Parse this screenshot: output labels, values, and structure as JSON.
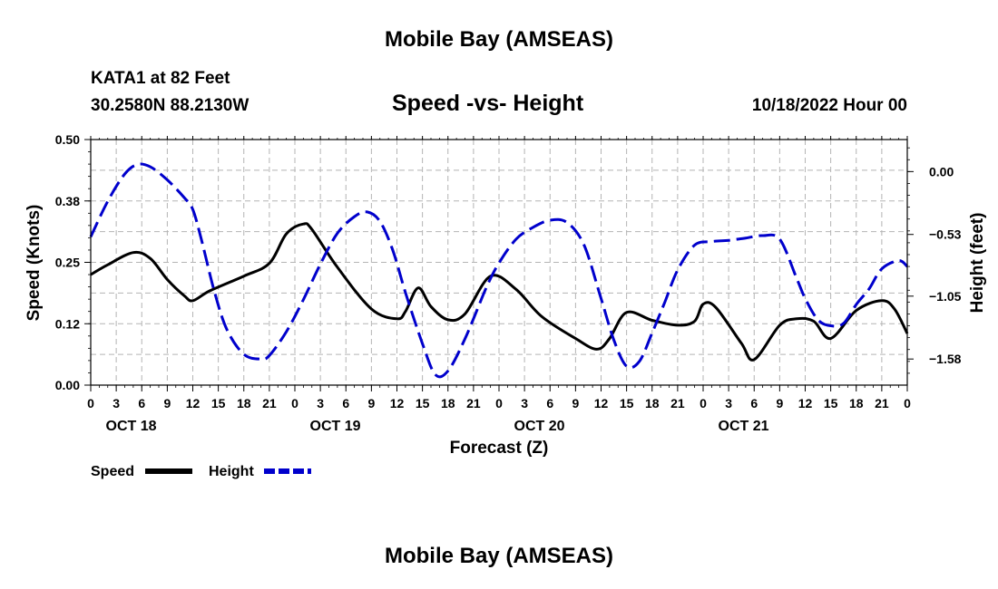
{
  "header": {
    "title": "Mobile Bay (AMSEAS)",
    "station_name": "KATA1 at 82 Feet",
    "station_coords": "30.2580N  88.2130W",
    "chart_title": "Speed -vs- Height",
    "forecast_date": "10/18/2022 Hour 00",
    "bottom_title": "Mobile Bay (AMSEAS)"
  },
  "chart_data": {
    "type": "line",
    "title": "Speed -vs- Height",
    "xlabel": "Forecast (Z)",
    "ylabel": "Speed (Knots)",
    "y2label": "Height (feet)",
    "xlim": [
      0,
      96
    ],
    "ylim": [
      0,
      0.5
    ],
    "y2lim": [
      -1.8,
      0.27
    ],
    "yticks": [
      "0.00",
      "0.12",
      "0.25",
      "0.38",
      "0.50"
    ],
    "y2ticks": [
      "0.00",
      "−0.53",
      "−1.05",
      "−1.58"
    ],
    "y2tick_values": [
      0.0,
      -0.53,
      -1.05,
      -1.58
    ],
    "xtick_labels": [
      "0",
      "3",
      "6",
      "9",
      "12",
      "15",
      "18",
      "21",
      "0",
      "3",
      "6",
      "9",
      "12",
      "15",
      "18",
      "21",
      "0",
      "3",
      "6",
      "9",
      "12",
      "15",
      "18",
      "21",
      "0",
      "3",
      "6",
      "9",
      "12",
      "15",
      "18",
      "21",
      "0"
    ],
    "day_labels": [
      "OCT 18",
      "OCT 19",
      "OCT 20",
      "OCT 21"
    ],
    "grid": true,
    "legend": {
      "placement": "bottom-left",
      "entries": [
        "Speed",
        "Height"
      ]
    },
    "series": [
      {
        "name": "Speed",
        "axis": "left",
        "color": "#000000",
        "style": "solid",
        "x": [
          0,
          2,
          5,
          7,
          9,
          11,
          12,
          14,
          18,
          21,
          23,
          25,
          26,
          29,
          33,
          36,
          37,
          38.5,
          40,
          42,
          44,
          47,
          50,
          53,
          57,
          59.5,
          61,
          63,
          66,
          69,
          71,
          72,
          73.5,
          76.5,
          78,
          81,
          83,
          85,
          87,
          90,
          93,
          94.5,
          96
        ],
        "values": [
          0.225,
          0.245,
          0.27,
          0.258,
          0.215,
          0.182,
          0.172,
          0.192,
          0.222,
          0.248,
          0.308,
          0.328,
          0.317,
          0.24,
          0.155,
          0.135,
          0.15,
          0.198,
          0.16,
          0.133,
          0.145,
          0.222,
          0.195,
          0.14,
          0.095,
          0.073,
          0.095,
          0.148,
          0.132,
          0.122,
          0.13,
          0.165,
          0.158,
          0.085,
          0.052,
          0.122,
          0.135,
          0.13,
          0.095,
          0.152,
          0.172,
          0.155,
          0.105
        ]
      },
      {
        "name": "Height",
        "axis": "right",
        "color": "#0000cc",
        "style": "dashed",
        "x": [
          0,
          2,
          4,
          5.5,
          7,
          9,
          11,
          12,
          13,
          14.5,
          16,
          18,
          20,
          21,
          23,
          25,
          27,
          29,
          31,
          32.5,
          34,
          35.5,
          37,
          39,
          40.5,
          42,
          44,
          46.5,
          48,
          50,
          52,
          54,
          56,
          58,
          60,
          61.5,
          63,
          64.5,
          66,
          67.5,
          69,
          71,
          73,
          75,
          77,
          79,
          81,
          83,
          84,
          85.5,
          87,
          88.5,
          90,
          91.5,
          93,
          95,
          96
        ],
        "values": [
          -0.55,
          -0.25,
          -0.02,
          0.06,
          0.04,
          -0.07,
          -0.22,
          -0.32,
          -0.57,
          -1.0,
          -1.33,
          -1.54,
          -1.58,
          -1.55,
          -1.35,
          -1.08,
          -0.78,
          -0.52,
          -0.38,
          -0.34,
          -0.42,
          -0.66,
          -1.02,
          -1.45,
          -1.71,
          -1.68,
          -1.41,
          -0.98,
          -0.77,
          -0.57,
          -0.47,
          -0.41,
          -0.43,
          -0.62,
          -1.07,
          -1.42,
          -1.64,
          -1.6,
          -1.36,
          -1.1,
          -0.83,
          -0.62,
          -0.59,
          -0.58,
          -0.56,
          -0.54,
          -0.57,
          -0.9,
          -1.07,
          -1.25,
          -1.3,
          -1.28,
          -1.12,
          -0.99,
          -0.82,
          -0.75,
          -0.8
        ]
      }
    ]
  }
}
